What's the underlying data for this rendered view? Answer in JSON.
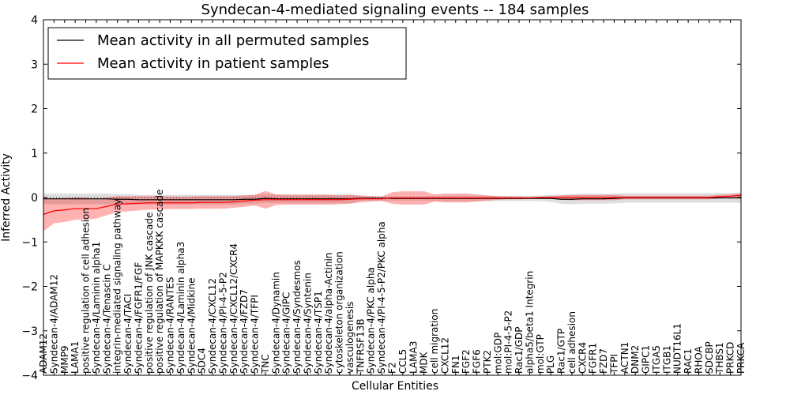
{
  "chart_data": {
    "type": "line",
    "title": "Syndecan-4-mediated signaling events -- 184 samples",
    "xlabel": "Cellular Entities",
    "ylabel": "Inferred Activity",
    "ylim": [
      -4,
      4
    ],
    "yticks": [
      -4,
      -3,
      -2,
      -1,
      0,
      1,
      2,
      3,
      4
    ],
    "legend_position": "top-left",
    "categories": [
      "ADAM12",
      "Syndecan-4/ADAM12",
      "MMP9",
      "LAMA1",
      "positive regulation of cell adhesion",
      "Syndecan-4/Laminin alpha1",
      "Syndecan-4/Tenascin C",
      "integrin-mediated signaling pathway",
      "Syndecan-4/TACI",
      "Syndecan-4/FGFR1/FGF",
      "positive regulation of JNK cascade",
      "positive regulation of MAPKKK cascade",
      "Syndecan-4/RANTES",
      "Syndecan-4/Laminin alpha3",
      "Syndecan-4/Midkine",
      "SDC4",
      "Syndecan-4/CXCL12",
      "Syndecan-4/PI-4-5-P2",
      "Syndecan-4/CXCL12/CXCR4",
      "Syndecan-4/FZD7",
      "Syndecan-4/TFPI",
      "TNC",
      "Syndecan-4/Dynamin",
      "Syndecan-4/GIPC",
      "Syndecan-4/Syndesmos",
      "Syndecan-4/Syntenin",
      "Syndecan-4/TSP1",
      "Syndecan-4/alpha-Actinin",
      "cytoskeleton organization",
      "vasculogenesis",
      "TNFRSF13B",
      "Syndecan-4/PKC alpha",
      "Syndecan-4/PI-4-5-P2/PKC alpha",
      "F2",
      "CCL5",
      "LAMA3",
      "MDK",
      "cell migration",
      "CXCL12",
      "FN1",
      "FGF2",
      "FGF6",
      "PTK2",
      "mol:GDP",
      "mol:PI-4-5-P2",
      "Rac1/GDP",
      "alpha5/beta1 Integrin",
      "mol:GTP",
      "PLG",
      "Rac1/GTP",
      "cell adhesion",
      "CXCR4",
      "FGFR1",
      "FZD7",
      "TFPI",
      "ACTN1",
      "DNM2",
      "GIPC1",
      "ITGA5",
      "ITGB1",
      "NUDT16L1",
      "RAC1",
      "RHOA",
      "SDCBP",
      "THBS1",
      "PRKCD",
      "PRKCA"
    ],
    "series": [
      {
        "name": "Mean activity in all permuted samples",
        "color": "#000000",
        "values": [
          -0.03,
          -0.03,
          -0.03,
          -0.03,
          -0.03,
          -0.03,
          -0.03,
          -0.04,
          -0.04,
          -0.05,
          -0.05,
          -0.05,
          -0.05,
          -0.05,
          -0.05,
          -0.05,
          -0.05,
          -0.05,
          -0.05,
          -0.04,
          -0.04,
          -0.02,
          -0.03,
          -0.03,
          -0.03,
          -0.03,
          -0.03,
          -0.03,
          -0.03,
          -0.03,
          -0.02,
          -0.02,
          -0.02,
          -0.02,
          -0.02,
          -0.02,
          -0.02,
          -0.02,
          -0.02,
          -0.02,
          -0.02,
          -0.02,
          -0.02,
          -0.02,
          -0.02,
          -0.02,
          -0.02,
          -0.02,
          -0.02,
          -0.04,
          -0.04,
          -0.03,
          -0.03,
          -0.03,
          -0.02,
          -0.01,
          -0.01,
          -0.01,
          -0.01,
          -0.01,
          -0.01,
          -0.01,
          -0.01,
          -0.01,
          -0.01,
          -0.01,
          -0.01
        ],
        "band": [
          0.12,
          0.12,
          0.12,
          0.12,
          0.12,
          0.12,
          0.12,
          0.12,
          0.12,
          0.11,
          0.11,
          0.11,
          0.11,
          0.11,
          0.11,
          0.11,
          0.11,
          0.11,
          0.11,
          0.1,
          0.1,
          0.1,
          0.1,
          0.1,
          0.1,
          0.1,
          0.1,
          0.1,
          0.1,
          0.1,
          0.05,
          0.05,
          0.05,
          0.05,
          0.05,
          0.05,
          0.05,
          0.06,
          0.06,
          0.06,
          0.06,
          0.06,
          0.06,
          0.06,
          0.06,
          0.06,
          0.06,
          0.06,
          0.08,
          0.1,
          0.11,
          0.11,
          0.11,
          0.11,
          0.11,
          0.11,
          0.11,
          0.11,
          0.11,
          0.11,
          0.11,
          0.11,
          0.11,
          0.11,
          0.11,
          0.11,
          0.11
        ]
      },
      {
        "name": "Mean activity in patient samples",
        "color": "#ff0000",
        "values": [
          -0.38,
          -0.3,
          -0.28,
          -0.25,
          -0.25,
          -0.25,
          -0.2,
          -0.15,
          -0.14,
          -0.13,
          -0.12,
          -0.12,
          -0.12,
          -0.12,
          -0.12,
          -0.11,
          -0.11,
          -0.11,
          -0.1,
          -0.08,
          -0.06,
          -0.05,
          -0.05,
          -0.05,
          -0.05,
          -0.05,
          -0.05,
          -0.05,
          -0.05,
          -0.04,
          -0.03,
          -0.03,
          -0.03,
          -0.01,
          -0.01,
          -0.01,
          -0.01,
          -0.01,
          -0.01,
          -0.01,
          -0.01,
          -0.01,
          -0.01,
          -0.01,
          -0.01,
          -0.01,
          -0.01,
          0.0,
          0.0,
          0.0,
          0.0,
          0.0,
          0.0,
          0.0,
          0.0,
          0.0,
          0.0,
          0.0,
          0.0,
          0.0,
          0.0,
          0.0,
          0.0,
          0.0,
          0.02,
          0.03,
          0.05
        ],
        "band": [
          0.38,
          0.28,
          0.27,
          0.25,
          0.25,
          0.22,
          0.2,
          0.18,
          0.17,
          0.16,
          0.15,
          0.15,
          0.14,
          0.14,
          0.14,
          0.14,
          0.14,
          0.14,
          0.13,
          0.13,
          0.12,
          0.2,
          0.12,
          0.11,
          0.11,
          0.11,
          0.11,
          0.11,
          0.1,
          0.1,
          0.08,
          0.06,
          0.05,
          0.13,
          0.15,
          0.15,
          0.15,
          0.08,
          0.1,
          0.1,
          0.1,
          0.08,
          0.06,
          0.04,
          0.03,
          0.03,
          0.02,
          0.02,
          0.03,
          0.05,
          0.06,
          0.06,
          0.06,
          0.06,
          0.06,
          0.04,
          0.04,
          0.04,
          0.04,
          0.04,
          0.04,
          0.04,
          0.04,
          0.04,
          0.04,
          0.04,
          0.05
        ]
      }
    ]
  }
}
